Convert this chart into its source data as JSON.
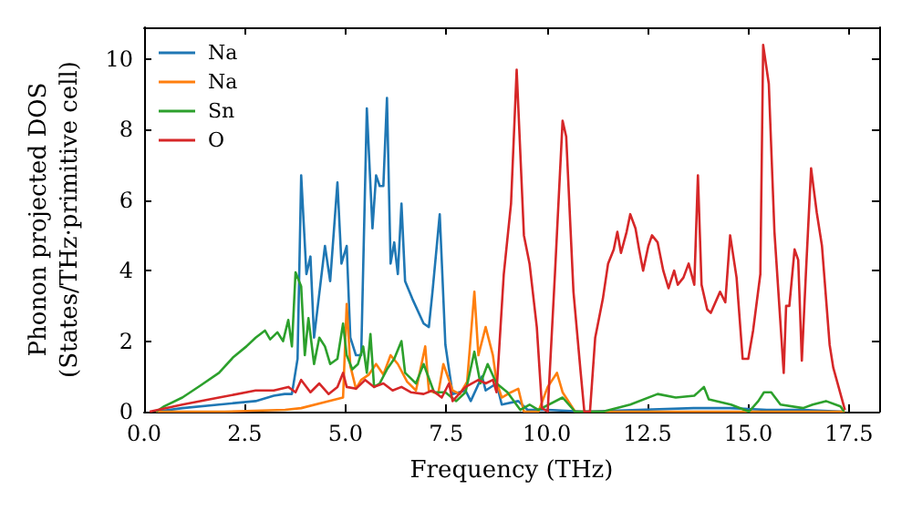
{
  "chart_data": {
    "type": "line",
    "xlabel": "Frequency (THz)",
    "ylabel": "Phonon projected DOS\n(States/THz·primitive cell)",
    "xlim": [
      0,
      18.25
    ],
    "ylim": [
      0,
      10.9
    ],
    "xticks": [
      {
        "value": 0,
        "label": "0.0"
      },
      {
        "value": 2.5,
        "label": "2.5"
      },
      {
        "value": 5,
        "label": "5.0"
      },
      {
        "value": 7.5,
        "label": "7.5"
      },
      {
        "value": 10,
        "label": "10.0"
      },
      {
        "value": 12.5,
        "label": "12.5"
      },
      {
        "value": 15,
        "label": "15.0"
      },
      {
        "value": 17.5,
        "label": "17.5"
      }
    ],
    "yticks": [
      0,
      2,
      4,
      6,
      8,
      10
    ],
    "grid": false,
    "legend": "top left",
    "marker": "none",
    "line_style": "solid",
    "series": [
      {
        "name": "Na",
        "color": "#1f77b4",
        "x": [
          0.3,
          0.95,
          1.86,
          2.77,
          3.22,
          3.49,
          3.67,
          3.81,
          3.9,
          4.03,
          4.13,
          4.22,
          4.49,
          4.62,
          4.8,
          4.9,
          5.03,
          5.12,
          5.26,
          5.39,
          5.53,
          5.67,
          5.76,
          5.85,
          5.94,
          6.03,
          6.12,
          6.21,
          6.3,
          6.39,
          6.48,
          6.66,
          6.94,
          7.07,
          7.16,
          7.34,
          7.48,
          7.66,
          7.98,
          8.11,
          8.39,
          8.48,
          8.75,
          8.88,
          9.29,
          9.52,
          10.02,
          10.92,
          12.28,
          13.64,
          14.55,
          15.46,
          16.36,
          17.36
        ],
        "values": [
          0,
          0.1,
          0.2,
          0.3,
          0.45,
          0.5,
          0.5,
          1.5,
          6.7,
          3.9,
          4.4,
          2.1,
          4.7,
          3.7,
          6.5,
          4.2,
          4.7,
          2.1,
          1.6,
          1.6,
          8.6,
          5.2,
          6.7,
          6.4,
          6.4,
          8.9,
          4.2,
          4.8,
          3.9,
          5.9,
          3.7,
          3.2,
          2.5,
          2.4,
          3.4,
          5.6,
          1.9,
          0.5,
          0.6,
          0.3,
          1.0,
          0.6,
          0.8,
          0.2,
          0.3,
          0.05,
          0.05,
          0,
          0.05,
          0.1,
          0.1,
          0.05,
          0.05,
          0
        ]
      },
      {
        "name": "Na",
        "color": "#ff7f0e",
        "x": [
          0.3,
          2.0,
          3.5,
          3.9,
          4.58,
          4.94,
          5.03,
          5.12,
          5.26,
          5.39,
          5.58,
          5.76,
          5.94,
          6.12,
          6.3,
          6.53,
          6.75,
          6.98,
          7.07,
          7.3,
          7.43,
          7.66,
          7.84,
          8.02,
          8.2,
          8.3,
          8.48,
          8.66,
          8.75,
          8.88,
          9.11,
          9.29,
          9.43,
          9.79,
          10.02,
          10.25,
          10.39,
          10.7,
          12.0,
          14.0,
          16.0,
          17.4
        ],
        "values": [
          0,
          0,
          0.05,
          0.1,
          0.3,
          0.4,
          3.05,
          1.3,
          0.65,
          0.9,
          1.05,
          1.35,
          1.05,
          1.6,
          1.35,
          0.85,
          0.6,
          1.85,
          0.6,
          0.5,
          1.35,
          0.6,
          0.5,
          0.85,
          3.4,
          1.6,
          2.4,
          1.6,
          0.85,
          0.4,
          0.55,
          0.65,
          0,
          0,
          0.7,
          1.1,
          0.55,
          0,
          0,
          0,
          0,
          0
        ]
      },
      {
        "name": "Sn",
        "color": "#2ca02c",
        "x": [
          0.3,
          0.5,
          0.95,
          1.41,
          1.86,
          2.22,
          2.54,
          2.77,
          3.0,
          3.13,
          3.31,
          3.45,
          3.58,
          3.67,
          3.76,
          3.9,
          3.99,
          4.08,
          4.22,
          4.35,
          4.49,
          4.62,
          4.8,
          4.94,
          5.03,
          5.17,
          5.31,
          5.44,
          5.53,
          5.62,
          5.71,
          5.85,
          6.03,
          6.21,
          6.39,
          6.48,
          6.75,
          6.94,
          7.2,
          7.48,
          7.75,
          7.98,
          8.2,
          8.35,
          8.53,
          8.75,
          9.02,
          9.34,
          9.57,
          9.79,
          10.39,
          10.7,
          11.39,
          12.07,
          12.75,
          13.2,
          13.66,
          13.9,
          14.02,
          14.57,
          15.02,
          15.25,
          15.39,
          15.57,
          15.8,
          16.36,
          16.6,
          16.93,
          17.29,
          17.38
        ],
        "values": [
          0,
          0.15,
          0.4,
          0.75,
          1.1,
          1.55,
          1.85,
          2.1,
          2.3,
          2.05,
          2.25,
          2.0,
          2.6,
          1.85,
          3.95,
          3.55,
          1.6,
          2.65,
          1.35,
          2.1,
          1.85,
          1.35,
          1.5,
          2.5,
          1.6,
          1.2,
          1.35,
          1.85,
          1.1,
          2.2,
          0.7,
          0.8,
          1.2,
          1.5,
          2.0,
          1.1,
          0.8,
          1.35,
          0.55,
          0.55,
          0.3,
          0.55,
          1.7,
          0.8,
          1.35,
          0.8,
          0.55,
          0.05,
          0.2,
          0.05,
          0.4,
          0,
          0,
          0.2,
          0.5,
          0.4,
          0.45,
          0.7,
          0.35,
          0.2,
          0,
          0.3,
          0.55,
          0.55,
          0.2,
          0.1,
          0.2,
          0.3,
          0.15,
          0
        ]
      },
      {
        "name": "O",
        "color": "#d62728",
        "x": [
          0.14,
          0.95,
          1.86,
          2.77,
          3.22,
          3.58,
          3.76,
          3.9,
          4.13,
          4.35,
          4.58,
          4.8,
          4.94,
          5.03,
          5.26,
          5.49,
          5.71,
          5.94,
          6.17,
          6.39,
          6.62,
          6.94,
          7.16,
          7.39,
          7.57,
          7.66,
          7.98,
          8.3,
          8.48,
          8.66,
          8.75,
          8.93,
          9.11,
          9.25,
          9.43,
          9.57,
          9.75,
          9.88,
          10.02,
          10.2,
          10.39,
          10.48,
          10.66,
          10.84,
          10.93,
          11.07,
          11.2,
          11.39,
          11.52,
          11.66,
          11.75,
          11.84,
          11.98,
          12.07,
          12.2,
          12.29,
          12.39,
          12.52,
          12.61,
          12.75,
          12.89,
          13.02,
          13.16,
          13.25,
          13.39,
          13.52,
          13.66,
          13.75,
          13.84,
          13.98,
          14.07,
          14.3,
          14.43,
          14.55,
          14.71,
          14.86,
          15.0,
          15.12,
          15.3,
          15.37,
          15.51,
          15.65,
          15.88,
          15.94,
          16.02,
          16.15,
          16.24,
          16.33,
          16.43,
          16.56,
          16.7,
          16.83,
          17.02,
          17.11,
          17.4
        ],
        "values": [
          0,
          0.2,
          0.4,
          0.6,
          0.6,
          0.7,
          0.55,
          0.9,
          0.55,
          0.8,
          0.5,
          0.7,
          1.1,
          0.7,
          0.65,
          0.9,
          0.7,
          0.8,
          0.6,
          0.7,
          0.55,
          0.5,
          0.6,
          0.4,
          0.8,
          0.3,
          0.7,
          0.9,
          0.8,
          0.9,
          0.55,
          3.9,
          5.9,
          9.7,
          5.0,
          4.2,
          2.4,
          0.1,
          0,
          3.9,
          8.25,
          7.8,
          3.4,
          1.1,
          0,
          0,
          2.1,
          3.2,
          4.2,
          4.6,
          5.1,
          4.5,
          5.1,
          5.6,
          5.2,
          4.6,
          4.0,
          4.7,
          5.0,
          4.8,
          4.0,
          3.5,
          4.0,
          3.6,
          3.8,
          4.2,
          3.6,
          6.7,
          3.6,
          2.9,
          2.8,
          3.4,
          3.1,
          5.0,
          3.8,
          1.5,
          1.5,
          2.3,
          3.9,
          10.4,
          9.3,
          5.1,
          1.1,
          3.0,
          3.0,
          4.6,
          4.3,
          1.45,
          3.9,
          6.9,
          5.65,
          4.7,
          1.9,
          1.25,
          0.05
        ]
      }
    ]
  }
}
